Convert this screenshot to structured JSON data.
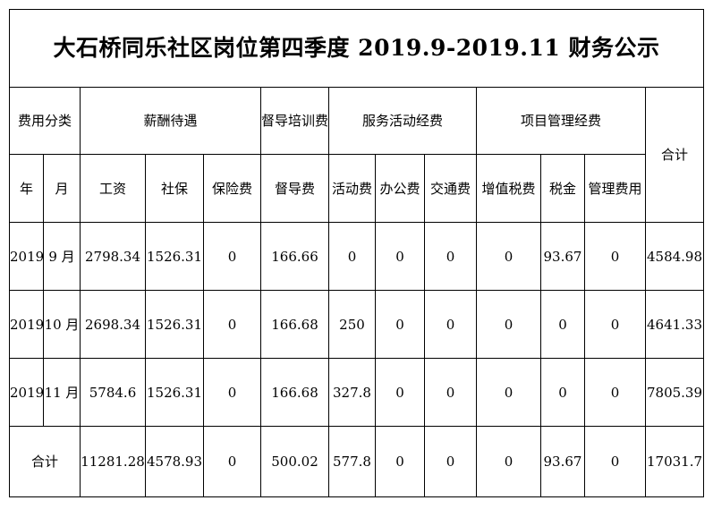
{
  "title": "大石桥同乐社区岗位第四季度 2019.9-2019.11 财务公示",
  "header": {
    "category": "费用分类",
    "salary_group": "薪酬待遇",
    "training_group": "督导培训费",
    "service_group": "服务活动经费",
    "project_group": "项目管理经费",
    "total": "合计",
    "year": "年",
    "month": "月",
    "wage": "工资",
    "social": "社保",
    "insurance": "保险费",
    "supervision": "督导费",
    "activity": "活动费",
    "office": "办公费",
    "transport": "交通费",
    "vat": "增值税费",
    "tax": "税金",
    "management": "管理费用"
  },
  "rows": [
    {
      "year": "2019",
      "month": "9 月",
      "wage": "2798.34",
      "social": "1526.31",
      "insurance": "0",
      "supervision": "166.66",
      "activity": "0",
      "office": "0",
      "transport": "0",
      "vat": "0",
      "tax": "93.67",
      "management": "0",
      "total": "4584.98"
    },
    {
      "year": "2019",
      "month": "10 月",
      "wage": "2698.34",
      "social": "1526.31",
      "insurance": "0",
      "supervision": "166.68",
      "activity": "250",
      "office": "0",
      "transport": "0",
      "vat": "0",
      "tax": "0",
      "management": "0",
      "total": "4641.33"
    },
    {
      "year": "2019",
      "month": "11 月",
      "wage": "5784.6",
      "social": "1526.31",
      "insurance": "0",
      "supervision": "166.68",
      "activity": "327.8",
      "office": "0",
      "transport": "0",
      "vat": "0",
      "tax": "0",
      "management": "0",
      "total": "7805.39"
    }
  ],
  "totals": {
    "label": "合计",
    "wage": "11281.28",
    "social": "4578.93",
    "insurance": "0",
    "supervision": "500.02",
    "activity": "577.8",
    "office": "0",
    "transport": "0",
    "vat": "0",
    "tax": "93.67",
    "management": "0",
    "total": "17031.7"
  }
}
